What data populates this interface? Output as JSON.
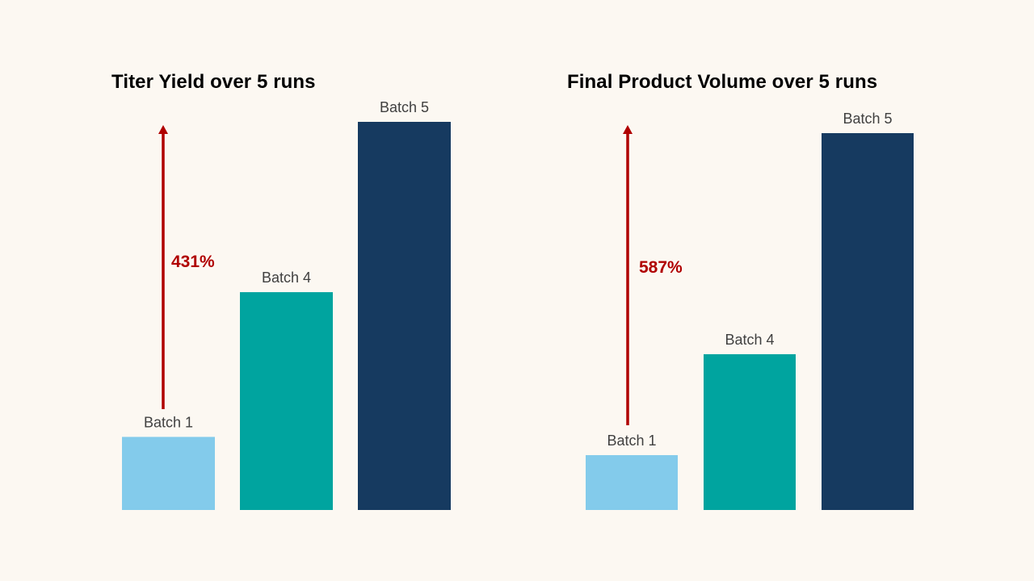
{
  "colors": {
    "background": "#fcf8f2",
    "batch1": "#83cbeb",
    "batch4": "#00a49f",
    "batch5": "#163a60",
    "arrow": "#b00000",
    "label_text": "#404040"
  },
  "chart_data": [
    {
      "type": "bar",
      "title": "Titer Yield over 5 runs",
      "categories": [
        "Batch 1",
        "Batch 4",
        "Batch 5"
      ],
      "values": [
        1.0,
        2.98,
        5.31
      ],
      "ylim": [
        0,
        5.31
      ],
      "grid": false,
      "legend": "none",
      "annotation": {
        "text": "431%",
        "from": "Batch 1",
        "to": "Batch 5"
      }
    },
    {
      "type": "bar",
      "title": "Final Product Volume over 5 runs",
      "categories": [
        "Batch 1",
        "Batch 4",
        "Batch 5"
      ],
      "values": [
        1.0,
        2.84,
        6.87
      ],
      "ylim": [
        0,
        6.87
      ],
      "grid": false,
      "legend": "none",
      "annotation": {
        "text": "587%",
        "from": "Batch 1",
        "to": "Batch 5"
      }
    }
  ]
}
